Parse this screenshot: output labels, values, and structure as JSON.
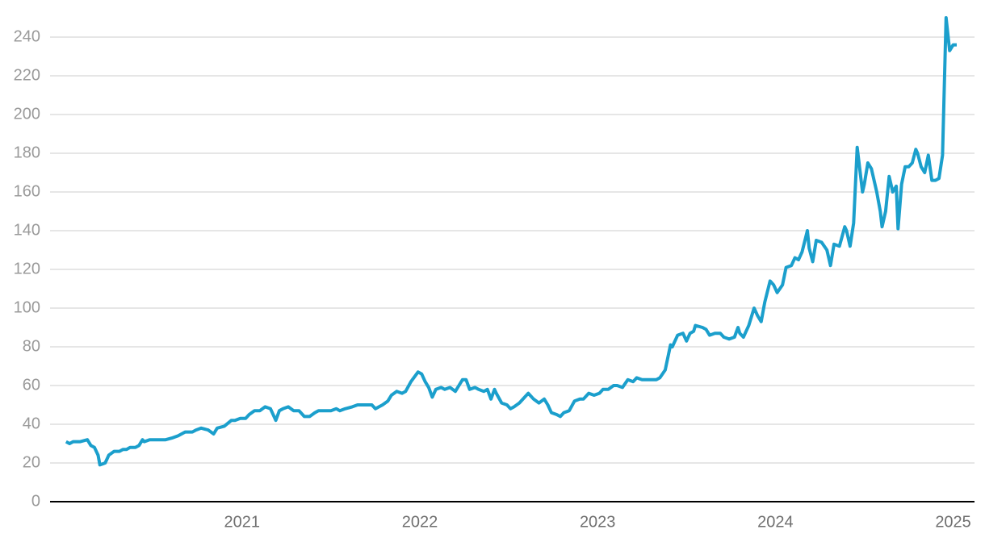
{
  "chart_data": {
    "type": "line",
    "x": [
      2020.01,
      2020.03,
      2020.05,
      2020.09,
      2020.13,
      2020.15,
      2020.17,
      2020.19,
      2020.2,
      2020.23,
      2020.25,
      2020.28,
      2020.31,
      2020.33,
      2020.35,
      2020.37,
      2020.4,
      2020.42,
      2020.44,
      2020.45,
      2020.48,
      2020.51,
      2020.54,
      2020.57,
      2020.61,
      2020.64,
      2020.68,
      2020.72,
      2020.74,
      2020.77,
      2020.81,
      2020.84,
      2020.86,
      2020.9,
      2020.94,
      2020.96,
      2020.99,
      2021.02,
      2021.04,
      2021.07,
      2021.1,
      2021.13,
      2021.16,
      2021.19,
      2021.21,
      2021.23,
      2021.26,
      2021.29,
      2021.32,
      2021.35,
      2021.38,
      2021.41,
      2021.43,
      2021.46,
      2021.5,
      2021.53,
      2021.55,
      2021.58,
      2021.62,
      2021.65,
      2021.69,
      2021.73,
      2021.75,
      2021.79,
      2021.82,
      2021.84,
      2021.87,
      2021.9,
      2021.92,
      2021.95,
      2021.99,
      2022.01,
      2022.03,
      2022.05,
      2022.07,
      2022.09,
      2022.12,
      2022.14,
      2022.17,
      2022.2,
      2022.22,
      2022.24,
      2022.26,
      2022.28,
      2022.31,
      2022.33,
      2022.36,
      2022.38,
      2022.4,
      2022.42,
      2022.43,
      2022.46,
      2022.49,
      2022.51,
      2022.53,
      2022.56,
      2022.59,
      2022.61,
      2022.64,
      2022.67,
      2022.7,
      2022.72,
      2022.74,
      2022.77,
      2022.79,
      2022.81,
      2022.84,
      2022.87,
      2022.9,
      2022.92,
      2022.95,
      2022.98,
      2023.01,
      2023.03,
      2023.06,
      2023.09,
      2023.11,
      2023.14,
      2023.17,
      2023.2,
      2023.22,
      2023.25,
      2023.28,
      2023.31,
      2023.33,
      2023.35,
      2023.38,
      2023.41,
      2023.42,
      2023.45,
      2023.48,
      2023.5,
      2023.52,
      2023.54,
      2023.55,
      2023.59,
      2023.61,
      2023.63,
      2023.66,
      2023.69,
      2023.71,
      2023.74,
      2023.77,
      2023.79,
      2023.8,
      2023.82,
      2023.85,
      2023.88,
      2023.9,
      2023.92,
      2023.94,
      2023.97,
      2023.99,
      2024.01,
      2024.04,
      2024.06,
      2024.09,
      2024.11,
      2024.13,
      2024.15,
      2024.18,
      2024.19,
      2024.21,
      2024.23,
      2024.26,
      2024.29,
      2024.31,
      2024.33,
      2024.36,
      2024.39,
      2024.4,
      2024.42,
      2024.44,
      2024.46,
      2024.49,
      2024.5,
      2024.52,
      2024.54,
      2024.57,
      2024.59,
      2024.6,
      2024.62,
      2024.64,
      2024.66,
      2024.68,
      2024.69,
      2024.71,
      2024.73,
      2024.75,
      2024.77,
      2024.79,
      2024.8,
      2024.82,
      2024.84,
      2024.86,
      2024.88,
      2024.9,
      2024.92,
      2024.94,
      2024.96,
      2024.98,
      2025.0,
      2025.02
    ],
    "values": [
      31,
      30,
      31,
      31,
      32,
      29,
      28,
      24,
      19,
      20,
      24,
      26,
      26,
      27,
      27,
      28,
      28,
      29,
      32,
      31,
      32,
      32,
      32,
      32,
      33,
      34,
      36,
      36,
      37,
      38,
      37,
      35,
      38,
      39,
      42,
      42,
      43,
      43,
      45,
      47,
      47,
      49,
      48,
      42,
      47,
      48,
      49,
      47,
      47,
      44,
      44,
      46,
      47,
      47,
      47,
      48,
      47,
      48,
      49,
      50,
      50,
      50,
      48,
      50,
      52,
      55,
      57,
      56,
      57,
      62,
      67,
      66,
      62,
      59,
      54,
      58,
      59,
      58,
      59,
      57,
      60,
      63,
      63,
      58,
      59,
      58,
      57,
      58,
      53,
      58,
      56,
      51,
      50,
      48,
      49,
      51,
      54,
      56,
      53,
      51,
      53,
      50,
      46,
      45,
      44,
      46,
      47,
      52,
      53,
      53,
      56,
      55,
      56,
      58,
      58,
      60,
      60,
      59,
      63,
      62,
      64,
      63,
      63,
      63,
      63,
      64,
      68,
      81,
      80,
      86,
      87,
      83,
      87,
      88,
      91,
      90,
      89,
      86,
      87,
      87,
      85,
      84,
      85,
      90,
      87,
      85,
      91,
      100,
      96,
      93,
      103,
      114,
      112,
      108,
      112,
      121,
      122,
      126,
      125,
      129,
      140,
      131,
      124,
      135,
      134,
      130,
      122,
      133,
      132,
      142,
      140,
      132,
      144,
      183,
      160,
      164,
      175,
      172,
      160,
      150,
      142,
      150,
      168,
      160,
      163,
      141,
      164,
      173,
      173,
      175,
      182,
      180,
      173,
      170,
      179,
      166,
      166,
      167,
      179,
      250,
      233,
      236,
      236
    ],
    "color": "#1b9fcc",
    "xlim": [
      2019.92,
      2025.12
    ],
    "xticks": [
      2021,
      2022,
      2023,
      2024,
      2025
    ],
    "ylim": [
      0,
      250
    ],
    "yticks": [
      0,
      20,
      40,
      60,
      80,
      100,
      120,
      140,
      160,
      180,
      200,
      220,
      240
    ],
    "grid": true
  }
}
